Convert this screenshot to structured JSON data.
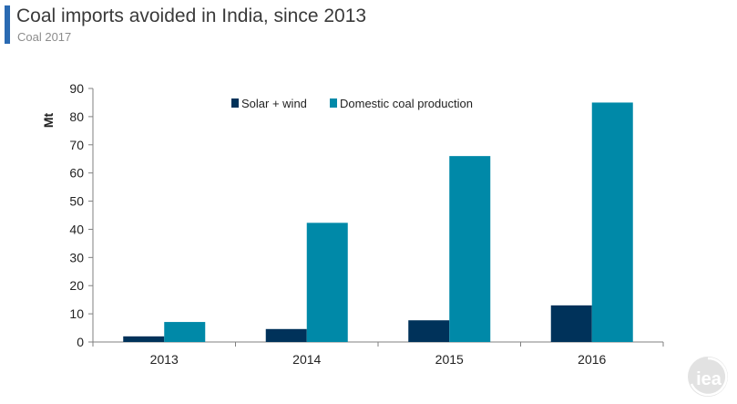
{
  "header": {
    "title": "Coal imports avoided in India, since 2013",
    "subtitle": "Coal 2017"
  },
  "logo": {
    "text": "iea"
  },
  "chart_data": {
    "type": "bar",
    "categories": [
      "2013",
      "2014",
      "2015",
      "2016"
    ],
    "series": [
      {
        "name": "Solar + wind",
        "values": [
          2,
          4.6,
          7.7,
          13
        ],
        "color": "#00325a"
      },
      {
        "name": "Domestic coal production",
        "values": [
          7.1,
          42.3,
          66,
          85
        ],
        "color": "#0089a8"
      }
    ],
    "ylabel": "Mt",
    "ylim": [
      0,
      90
    ],
    "yticks": [
      0,
      10,
      20,
      30,
      40,
      50,
      60,
      70,
      80,
      90
    ],
    "grid": false,
    "legend": "top"
  }
}
